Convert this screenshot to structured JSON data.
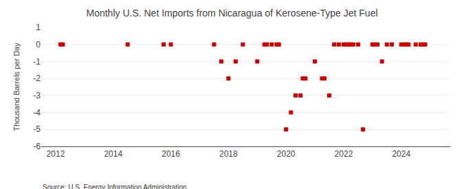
{
  "chart_data": {
    "type": "scatter",
    "title": "Monthly U.S. Net Imports from Nicaragua of Kerosene-Type Jet Fuel",
    "ylabel": "Thousand Barrels per Day",
    "annotations": [
      "Source: U.S. Energy Information Administration"
    ],
    "color": "#cc0000",
    "marker": "square",
    "grid": "y",
    "xlim": [
      2011.5,
      2025.7
    ],
    "xticks": [
      2012,
      2014,
      2016,
      2018,
      2020,
      2022,
      2024
    ],
    "ylim": [
      -6,
      1
    ],
    "yticks": [
      1,
      0,
      -1,
      -2,
      -3,
      -4,
      -5,
      -6
    ],
    "x": [
      2012.17,
      2012.25,
      2014.5,
      2015.75,
      2016.0,
      2017.5,
      2017.75,
      2018.0,
      2018.25,
      2018.5,
      2019.0,
      2019.25,
      2019.33,
      2019.5,
      2019.67,
      2019.75,
      2020.0,
      2020.17,
      2020.33,
      2020.5,
      2020.58,
      2020.67,
      2021.0,
      2021.25,
      2021.33,
      2021.5,
      2021.67,
      2021.83,
      2022.0,
      2022.08,
      2022.17,
      2022.25,
      2022.33,
      2022.5,
      2022.67,
      2023.0,
      2023.08,
      2023.17,
      2023.33,
      2023.5,
      2023.67,
      2024.0,
      2024.08,
      2024.17,
      2024.25,
      2024.5,
      2024.67,
      2024.75,
      2024.83
    ],
    "values": [
      0,
      0,
      0,
      0,
      0,
      0,
      -1,
      -2,
      -1,
      0,
      -1,
      0,
      0,
      0,
      0,
      0,
      -5,
      -4,
      -3,
      -3,
      -2,
      -2,
      -1,
      -2,
      -2,
      -3,
      0,
      0,
      0,
      0,
      0,
      0,
      0,
      0,
      -5,
      0,
      0,
      0,
      -1,
      0,
      0,
      0,
      0,
      0,
      0,
      0,
      0,
      0,
      0
    ]
  }
}
